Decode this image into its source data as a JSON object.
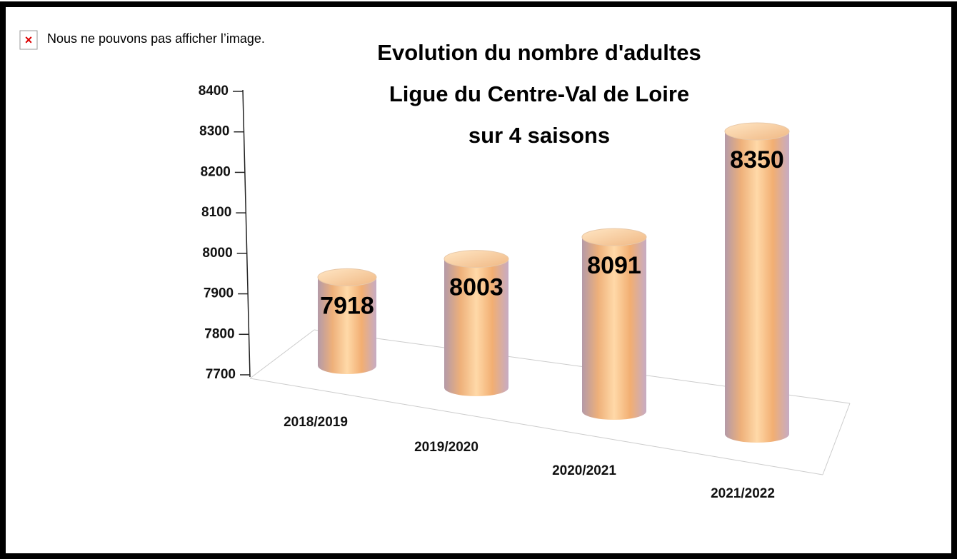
{
  "placeholder_text": "Nous ne pouvons pas afficher l’image.",
  "chart_data": {
    "type": "bar",
    "title": [
      "Evolution du nombre d'adultes",
      "Ligue du Centre-Val de Loire",
      "sur 4 saisons"
    ],
    "categories": [
      "2018/2019",
      "2019/2020",
      "2020/2021",
      "2021/2022"
    ],
    "values": [
      7918,
      8003,
      8091,
      8350
    ],
    "ylim": [
      7700,
      8400
    ],
    "yticks": [
      7700,
      7800,
      7900,
      8000,
      8100,
      8200,
      8300,
      8400
    ]
  }
}
